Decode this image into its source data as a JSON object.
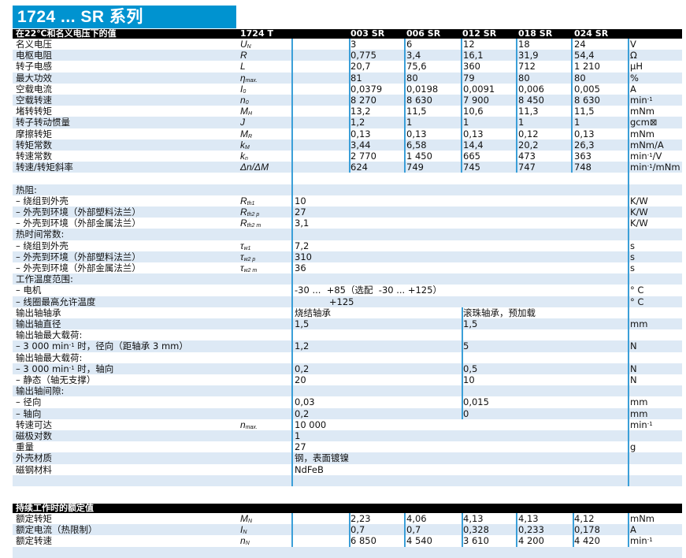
{
  "title": "1724 ... SR 系列",
  "header": {
    "label": "在22℃和名义电压下的值",
    "type": "1724 T",
    "models": [
      "003 SR",
      "006 SR",
      "012 SR",
      "018 SR",
      "024 SR"
    ]
  },
  "main_rows": [
    {
      "label": "名义电压",
      "sym": "U",
      "sub": "N",
      "vals": [
        "3",
        "6",
        "12",
        "18",
        "24"
      ],
      "unit": "V"
    },
    {
      "label": "电枢电阻",
      "sym": "R",
      "sub": "",
      "vals": [
        "0,775",
        "3,4",
        "16,1",
        "31,9",
        "54,4"
      ],
      "unit": "Ω"
    },
    {
      "label": "转子电感",
      "sym": "L",
      "sub": "",
      "vals": [
        "20,7",
        "75,6",
        "360",
        "712",
        "1 210"
      ],
      "unit": "μH"
    },
    {
      "label": "最大功效",
      "sym": "η",
      "sub": "max.",
      "vals": [
        "81",
        "80",
        "79",
        "80",
        "80"
      ],
      "unit": "%"
    },
    {
      "label": "空载电流",
      "sym": "I",
      "sub": "0",
      "vals": [
        "0,0379",
        "0,0198",
        "0,0091",
        "0,006",
        "0,005"
      ],
      "unit": "A"
    },
    {
      "label": "空载转速",
      "sym": "n",
      "sub": "0",
      "vals": [
        "8 270",
        "8 630",
        "7 900",
        "8 450",
        "8 630"
      ],
      "unit": "min-1"
    },
    {
      "label": "堵转转矩",
      "sym": "M",
      "sub": "H",
      "vals": [
        "13,2",
        "11,5",
        "10,6",
        "11,3",
        "11,5"
      ],
      "unit": "mNm"
    },
    {
      "label": "转子转动惯量",
      "sym": "J",
      "sub": "",
      "vals": [
        "1,2",
        "1",
        "1",
        "1",
        "1"
      ],
      "unit": "gcm⊠"
    },
    {
      "label": "摩擦转矩",
      "sym": "M",
      "sub": "R",
      "vals": [
        "0,13",
        "0,13",
        "0,13",
        "0,12",
        "0,13"
      ],
      "unit": "mNm"
    },
    {
      "label": "转矩常数",
      "sym": "k",
      "sub": "M",
      "vals": [
        "3,44",
        "6,58",
        "14,4",
        "20,2",
        "26,3"
      ],
      "unit": "mNm/A"
    },
    {
      "label": "转速常数",
      "sym": "k",
      "sub": "n",
      "vals": [
        "2 770",
        "1 450",
        "665",
        "473",
        "363"
      ],
      "unit": "min-1/V"
    },
    {
      "label": "转速/转矩斜率",
      "sym": "Δn/ΔM",
      "sub": "",
      "vals": [
        "624",
        "749",
        "745",
        "747",
        "748"
      ],
      "unit": "min-1/mNm"
    },
    {
      "label": "",
      "sym": "",
      "sub": "",
      "unit": ""
    },
    {
      "label": "热阻:",
      "sym": "",
      "sub": "",
      "unit": ""
    },
    {
      "label": "– 绕组到外壳",
      "sym": "R",
      "sub": "th1",
      "v1": "10",
      "unit": "K/W"
    },
    {
      "label": "– 外壳到环境（外部塑料法兰）",
      "sym": "R",
      "sub": "th2 p",
      "v1": "27",
      "unit": "K/W"
    },
    {
      "label": "– 外壳到环境（外部金属法兰）",
      "sym": "R",
      "sub": "th2 m",
      "v1": "3,1",
      "unit": "K/W"
    },
    {
      "label": "热时间常数:",
      "sym": "",
      "sub": "",
      "unit": ""
    },
    {
      "label": "– 绕组到外壳",
      "sym": "τ",
      "sub": "w1",
      "v1": "7,2",
      "unit": "s"
    },
    {
      "label": "– 外壳到环境（外部塑料法兰）",
      "sym": "τ",
      "sub": "w2 p",
      "v1": "310",
      "unit": "s"
    },
    {
      "label": "– 外壳到环境（外部金属法兰）",
      "sym": "τ",
      "sub": "w2 m",
      "v1": "36",
      "unit": "s"
    },
    {
      "label": "工作温度范围:",
      "sym": "",
      "sub": "",
      "unit": ""
    },
    {
      "label": "– 电机",
      "sym": "",
      "sub": "",
      "v1": "-30 ...  +85（选配  -30 ... +125）",
      "unit": "° C"
    },
    {
      "label": "– 线圈最高允许温度",
      "sym": "",
      "sub": "",
      "v1": "            +125",
      "unit": "° C"
    },
    {
      "label": "输出轴轴承",
      "sym": "",
      "sub": "",
      "v1": "烧结轴承",
      "v2": "滚珠轴承，预加载",
      "unit": ""
    },
    {
      "label": "输出轴直径",
      "sym": "",
      "sub": "",
      "v1": "1,5",
      "v2": "1,5",
      "unit": "mm"
    },
    {
      "label": "输出轴最大载荷:",
      "sym": "",
      "sub": "",
      "unit": ""
    },
    {
      "label": "– 3 000 min-1 时，径向（距轴承 3 mm）",
      "sym": "",
      "sub": "",
      "v1": "1,2",
      "v2": "5",
      "unit": "N"
    },
    {
      "label": "输出轴最大载荷:",
      "sym": "",
      "sub": "",
      "unit": ""
    },
    {
      "label": "– 3 000 min-1 时，轴向",
      "sym": "",
      "sub": "",
      "v1": "0,2",
      "v2": "0,5",
      "unit": "N"
    },
    {
      "label": "– 静态（轴无支撑）",
      "sym": "",
      "sub": "",
      "v1": "20",
      "v2": "10",
      "unit": "N"
    },
    {
      "label": "输出轴间隙:",
      "sym": "",
      "sub": "",
      "unit": ""
    },
    {
      "label": "– 径向",
      "sym": "",
      "sub": "",
      "v1": "0,03",
      "v2": "0,015",
      "unit": "mm"
    },
    {
      "label": "– 轴向",
      "sym": "",
      "sub": "",
      "v1": "0,2",
      "v2": "0",
      "unit": "mm"
    },
    {
      "label": "转速可达",
      "sym": "n",
      "sub": "max.",
      "v1": "10 000",
      "unit": "min-1"
    },
    {
      "label": "磁极对数",
      "sym": "",
      "sub": "",
      "v1": "1",
      "unit": ""
    },
    {
      "label": "重量",
      "sym": "",
      "sub": "",
      "v1": "27",
      "unit": "g"
    },
    {
      "label": "外壳材质",
      "sym": "",
      "sub": "",
      "v1": "钢，表面镀镍",
      "unit": ""
    },
    {
      "label": "磁钢材料",
      "sym": "",
      "sub": "",
      "v1": "NdFeB",
      "unit": ""
    },
    {
      "label": "",
      "sym": "",
      "sub": "",
      "unit": ""
    }
  ],
  "rated": {
    "header": "持续工作时的额定值",
    "rows": [
      {
        "label": "额定转矩",
        "sym": "M",
        "sub": "N",
        "vals": [
          "2,23",
          "4,06",
          "4,13",
          "4,13",
          "4,12"
        ],
        "unit": "mNm"
      },
      {
        "label": "额定电流（热限制）",
        "sym": "I",
        "sub": "N",
        "vals": [
          "0,7",
          "0,7",
          "0,328",
          "0,233",
          "0,178"
        ],
        "unit": "A"
      },
      {
        "label": "额定转速",
        "sym": "n",
        "sub": "N",
        "vals": [
          "6 850",
          "4 540",
          "3 610",
          "4 200",
          "4 420"
        ],
        "unit": "min-1"
      },
      {
        "label": "",
        "sym": "",
        "sub": "",
        "unit": ""
      }
    ]
  },
  "colors": {
    "title_bg": "#0093d0",
    "header_bg": "#000000",
    "row_alt": "#dde9f5",
    "rule": "#3b9fd8"
  }
}
